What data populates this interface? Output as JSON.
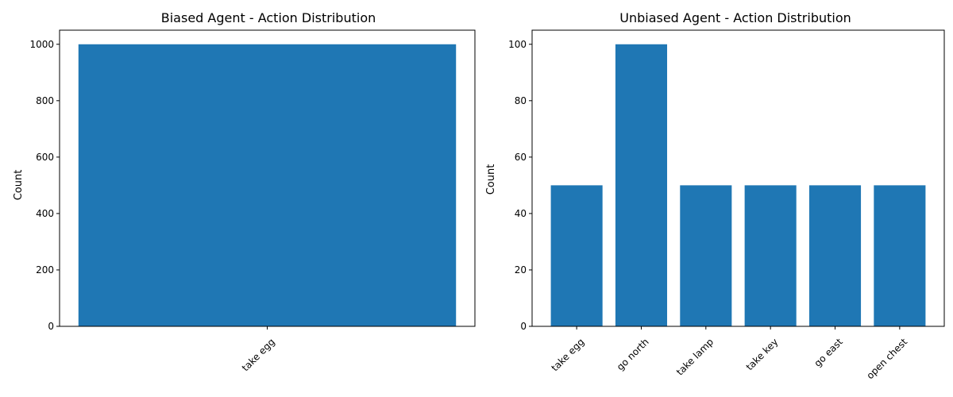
{
  "colors": {
    "bar": "#1f77b4",
    "axis": "#000000"
  },
  "chart_data": [
    {
      "type": "bar",
      "title": "Biased Agent - Action Distribution",
      "xlabel": "",
      "ylabel": "Count",
      "categories": [
        "take egg"
      ],
      "values": [
        1000
      ],
      "ylim": [
        0,
        1050
      ],
      "yticks": [
        0,
        200,
        400,
        600,
        800,
        1000
      ],
      "grid": false,
      "xtick_rotation": 45
    },
    {
      "type": "bar",
      "title": "Unbiased Agent - Action Distribution",
      "xlabel": "",
      "ylabel": "Count",
      "categories": [
        "take egg",
        "go north",
        "take lamp",
        "take key",
        "go east",
        "open chest"
      ],
      "values": [
        50,
        100,
        50,
        50,
        50,
        50
      ],
      "ylim": [
        0,
        105
      ],
      "yticks": [
        0,
        20,
        40,
        60,
        80,
        100
      ],
      "grid": false,
      "xtick_rotation": 45
    }
  ]
}
